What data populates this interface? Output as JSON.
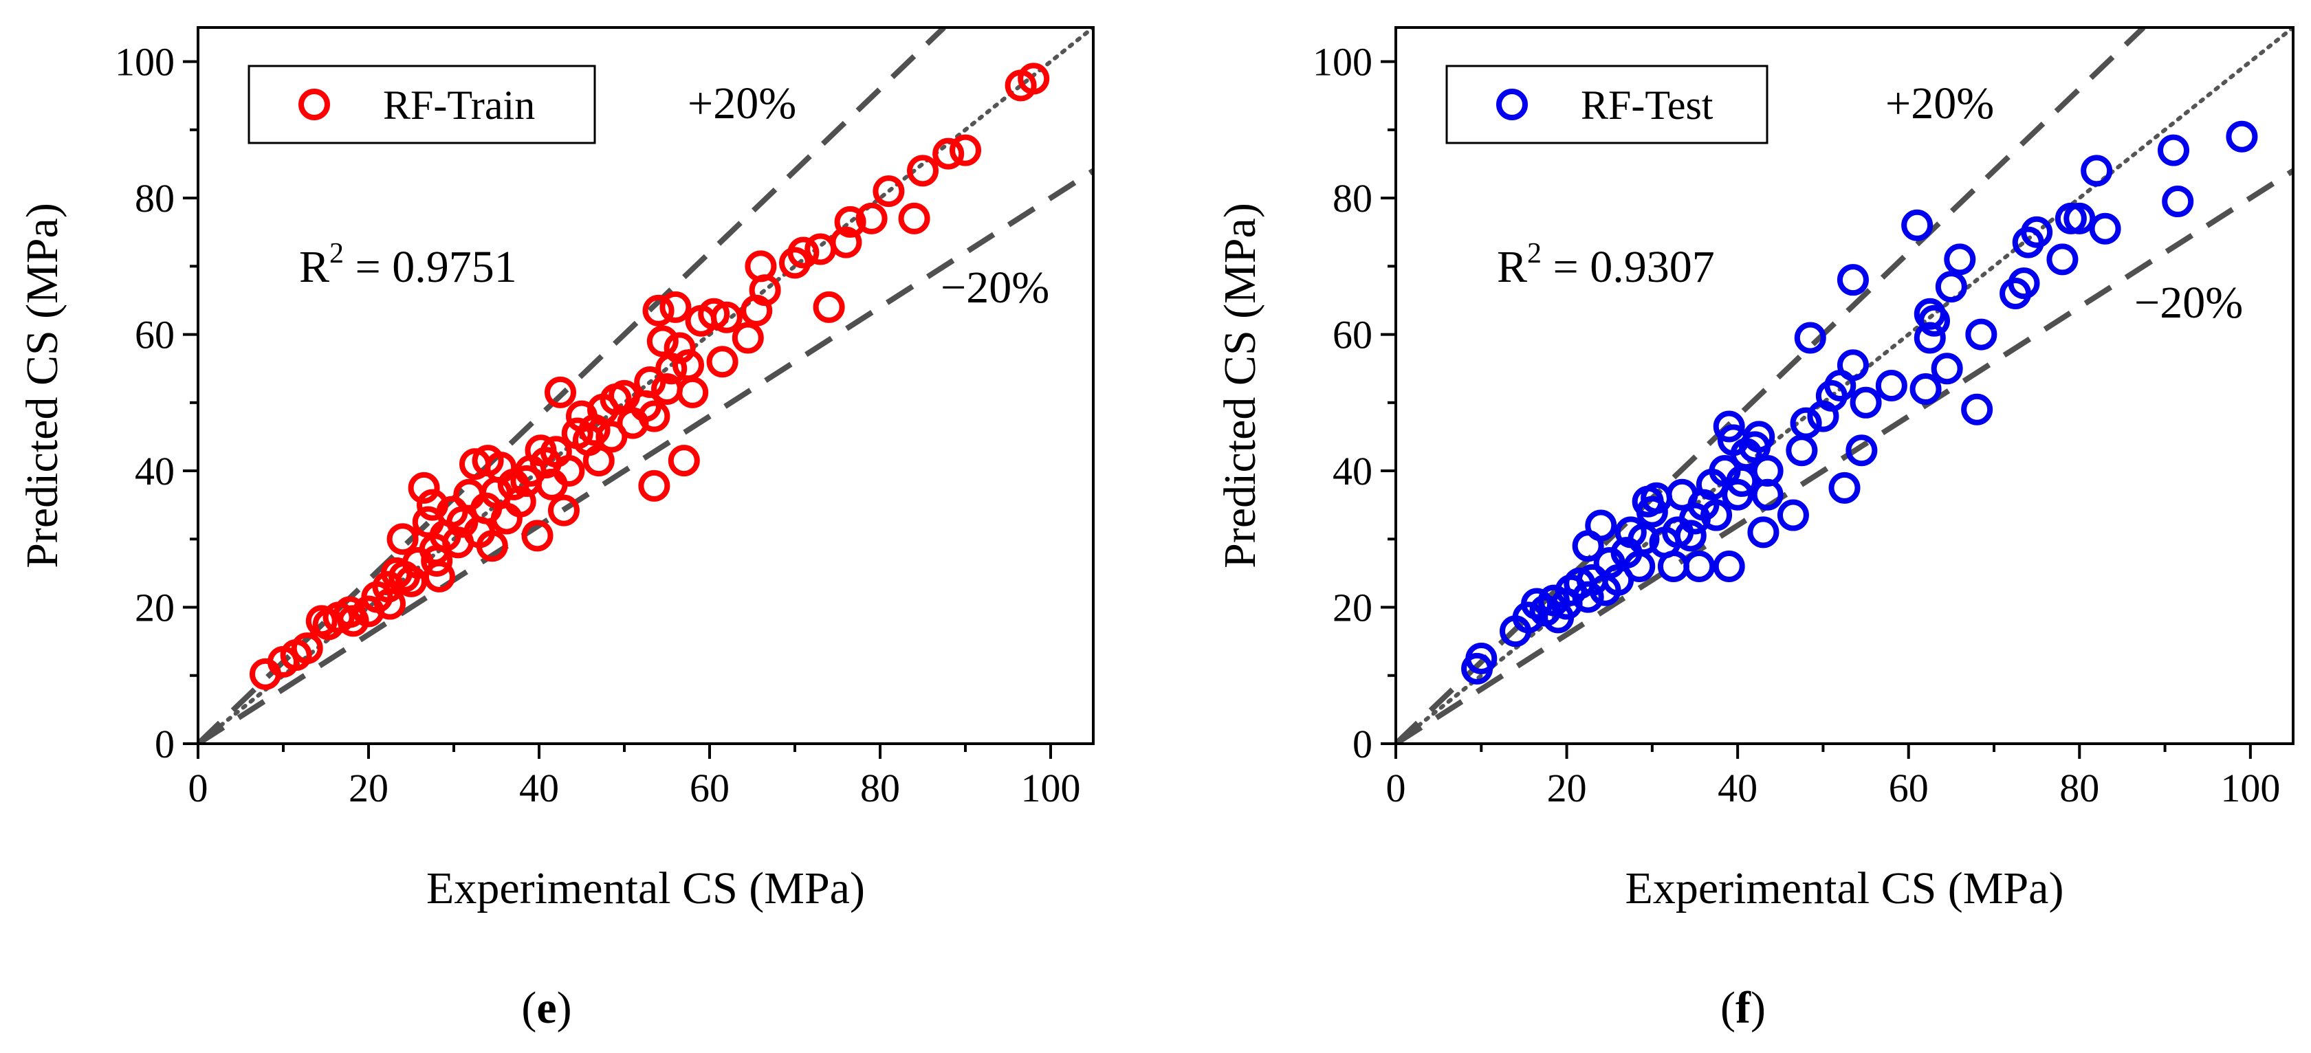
{
  "chart_data": [
    {
      "type": "scatter",
      "panel_label": {
        "open": "(",
        "letter": "e",
        "close": ")"
      },
      "xlabel": "Experimental CS (MPa)",
      "ylabel": "Predicted CS (MPa)",
      "xlim": [
        0,
        105
      ],
      "ylim": [
        0,
        105
      ],
      "xticks": [
        0,
        20,
        40,
        60,
        80,
        100
      ],
      "yticks": [
        0,
        20,
        40,
        60,
        80,
        100
      ],
      "legend": {
        "label": "RF-Train",
        "position": "top-left"
      },
      "r2": {
        "prefix": "R",
        "sup": "2",
        "value": " = 0.9751"
      },
      "bands": {
        "upper": "+20%",
        "lower": "−20%"
      },
      "marker_color": "#ff0000",
      "points": [
        [
          7.9,
          10.2
        ],
        [
          10.0,
          12.0
        ],
        [
          11.5,
          13.0
        ],
        [
          12.8,
          14.0
        ],
        [
          14.5,
          18.0
        ],
        [
          15.3,
          17.5
        ],
        [
          16.5,
          18.5
        ],
        [
          17.8,
          19.3
        ],
        [
          18.2,
          18.0
        ],
        [
          20.0,
          19.4
        ],
        [
          21.0,
          21.5
        ],
        [
          22.3,
          23.0
        ],
        [
          22.5,
          20.5
        ],
        [
          23.3,
          25.0
        ],
        [
          24.0,
          30.0
        ],
        [
          24.2,
          24.5
        ],
        [
          25.0,
          23.8
        ],
        [
          25.8,
          26.5
        ],
        [
          26.5,
          37.5
        ],
        [
          27.0,
          32.5
        ],
        [
          27.5,
          35.0
        ],
        [
          27.8,
          28.5
        ],
        [
          28.0,
          26.8
        ],
        [
          28.3,
          24.5
        ],
        [
          29.0,
          30.5
        ],
        [
          29.8,
          34.0
        ],
        [
          30.5,
          29.5
        ],
        [
          31.0,
          32.5
        ],
        [
          31.8,
          36.5
        ],
        [
          32.5,
          41.0
        ],
        [
          33.0,
          31.0
        ],
        [
          33.8,
          34.5
        ],
        [
          34.0,
          41.5
        ],
        [
          34.5,
          29.0
        ],
        [
          35.0,
          36.8
        ],
        [
          35.5,
          40.5
        ],
        [
          36.2,
          33.0
        ],
        [
          37.0,
          38.0
        ],
        [
          37.8,
          35.5
        ],
        [
          38.5,
          38.5
        ],
        [
          39.0,
          40.0
        ],
        [
          39.8,
          30.5
        ],
        [
          40.2,
          43.0
        ],
        [
          40.8,
          41.2
        ],
        [
          41.5,
          38.0
        ],
        [
          42.0,
          42.8
        ],
        [
          42.5,
          51.5
        ],
        [
          42.9,
          34.2
        ],
        [
          43.5,
          40.0
        ],
        [
          44.5,
          45.5
        ],
        [
          45.0,
          48.0
        ],
        [
          45.8,
          44.5
        ],
        [
          46.5,
          46.0
        ],
        [
          47.0,
          41.5
        ],
        [
          47.5,
          49.0
        ],
        [
          48.5,
          45.0
        ],
        [
          49.0,
          50.5
        ],
        [
          50.0,
          51.0
        ],
        [
          51.0,
          47.0
        ],
        [
          52.5,
          49.5
        ],
        [
          53.0,
          53.0
        ],
        [
          53.5,
          48.0
        ],
        [
          53.5,
          37.8
        ],
        [
          54.0,
          63.5
        ],
        [
          54.5,
          59.0
        ],
        [
          55.0,
          52.0
        ],
        [
          55.5,
          55.0
        ],
        [
          56.0,
          64.0
        ],
        [
          56.5,
          58.0
        ],
        [
          57.0,
          41.5
        ],
        [
          57.5,
          55.5
        ],
        [
          58.0,
          51.5
        ],
        [
          59.0,
          62.0
        ],
        [
          60.5,
          63.0
        ],
        [
          61.5,
          56.0
        ],
        [
          62.0,
          62.5
        ],
        [
          64.5,
          59.5
        ],
        [
          65.5,
          63.5
        ],
        [
          66.0,
          70.0
        ],
        [
          66.5,
          66.5
        ],
        [
          70.0,
          70.5
        ],
        [
          71.0,
          72.0
        ],
        [
          73.0,
          72.5
        ],
        [
          74.0,
          64.0
        ],
        [
          76.0,
          73.5
        ],
        [
          76.5,
          76.5
        ],
        [
          79.0,
          77.0
        ],
        [
          81.0,
          81.0
        ],
        [
          84.0,
          77.0
        ],
        [
          85.0,
          84.0
        ],
        [
          88.0,
          86.5
        ],
        [
          90.0,
          87.0
        ],
        [
          96.5,
          96.5
        ],
        [
          98.0,
          97.5
        ]
      ]
    },
    {
      "type": "scatter",
      "panel_label": {
        "open": "(",
        "letter": "f",
        "close": ")"
      },
      "xlabel": "Experimental CS (MPa)",
      "ylabel": "Predicted CS (MPa)",
      "xlim": [
        0,
        105
      ],
      "ylim": [
        0,
        105
      ],
      "xticks": [
        0,
        20,
        40,
        60,
        80,
        100
      ],
      "yticks": [
        0,
        20,
        40,
        60,
        80,
        100
      ],
      "legend": {
        "label": "RF-Test",
        "position": "top-left"
      },
      "r2": {
        "prefix": "R",
        "sup": "2",
        "value": " = 0.9307"
      },
      "bands": {
        "upper": "+20%",
        "lower": "−20%"
      },
      "marker_color": "#0000ee",
      "points": [
        [
          9.5,
          11.0
        ],
        [
          10.0,
          12.5
        ],
        [
          14.0,
          16.5
        ],
        [
          15.5,
          18.5
        ],
        [
          16.5,
          20.5
        ],
        [
          17.5,
          19.5
        ],
        [
          18.5,
          21.0
        ],
        [
          19.0,
          18.5
        ],
        [
          20.0,
          20.5
        ],
        [
          20.5,
          22.5
        ],
        [
          21.5,
          23.5
        ],
        [
          22.5,
          21.5
        ],
        [
          22.5,
          29.0
        ],
        [
          23.0,
          24.0
        ],
        [
          24.0,
          32.0
        ],
        [
          24.5,
          22.5
        ],
        [
          25.0,
          26.5
        ],
        [
          26.0,
          24.0
        ],
        [
          27.0,
          28.0
        ],
        [
          27.5,
          31.0
        ],
        [
          28.5,
          26.0
        ],
        [
          29.0,
          30.0
        ],
        [
          29.5,
          35.5
        ],
        [
          30.0,
          34.0
        ],
        [
          30.5,
          36.0
        ],
        [
          31.5,
          29.5
        ],
        [
          32.5,
          26.0
        ],
        [
          33.0,
          31.0
        ],
        [
          33.5,
          36.5
        ],
        [
          34.5,
          30.5
        ],
        [
          35.0,
          33.0
        ],
        [
          35.5,
          26.0
        ],
        [
          36.0,
          35.0
        ],
        [
          37.0,
          38.0
        ],
        [
          37.5,
          33.5
        ],
        [
          38.5,
          40.0
        ],
        [
          39.0,
          46.5
        ],
        [
          39.0,
          26.0
        ],
        [
          39.5,
          44.5
        ],
        [
          40.0,
          36.5
        ],
        [
          40.5,
          38.5
        ],
        [
          41.0,
          42.5
        ],
        [
          42.0,
          43.5
        ],
        [
          42.5,
          45.0
        ],
        [
          43.0,
          31.0
        ],
        [
          43.5,
          36.5
        ],
        [
          43.5,
          40.0
        ],
        [
          46.5,
          33.5
        ],
        [
          47.5,
          43.0
        ],
        [
          48.0,
          47.0
        ],
        [
          48.5,
          59.5
        ],
        [
          50.0,
          48.0
        ],
        [
          51.0,
          51.0
        ],
        [
          52.0,
          52.5
        ],
        [
          52.5,
          37.5
        ],
        [
          53.5,
          68.0
        ],
        [
          53.5,
          55.5
        ],
        [
          54.5,
          43.0
        ],
        [
          55.0,
          50.0
        ],
        [
          58.0,
          52.5
        ],
        [
          61.0,
          76.0
        ],
        [
          62.0,
          52.0
        ],
        [
          62.5,
          59.5
        ],
        [
          62.5,
          63.0
        ],
        [
          63.0,
          62.0
        ],
        [
          64.5,
          55.0
        ],
        [
          65.0,
          67.0
        ],
        [
          66.0,
          71.0
        ],
        [
          68.0,
          49.0
        ],
        [
          68.5,
          60.0
        ],
        [
          72.5,
          66.0
        ],
        [
          73.5,
          67.5
        ],
        [
          74.0,
          73.5
        ],
        [
          75.0,
          75.0
        ],
        [
          78.0,
          71.0
        ],
        [
          79.0,
          77.0
        ],
        [
          80.0,
          77.0
        ],
        [
          82.0,
          84.0
        ],
        [
          83.0,
          75.5
        ],
        [
          91.0,
          87.0
        ],
        [
          91.5,
          79.5
        ],
        [
          99.0,
          89.0
        ]
      ]
    }
  ]
}
